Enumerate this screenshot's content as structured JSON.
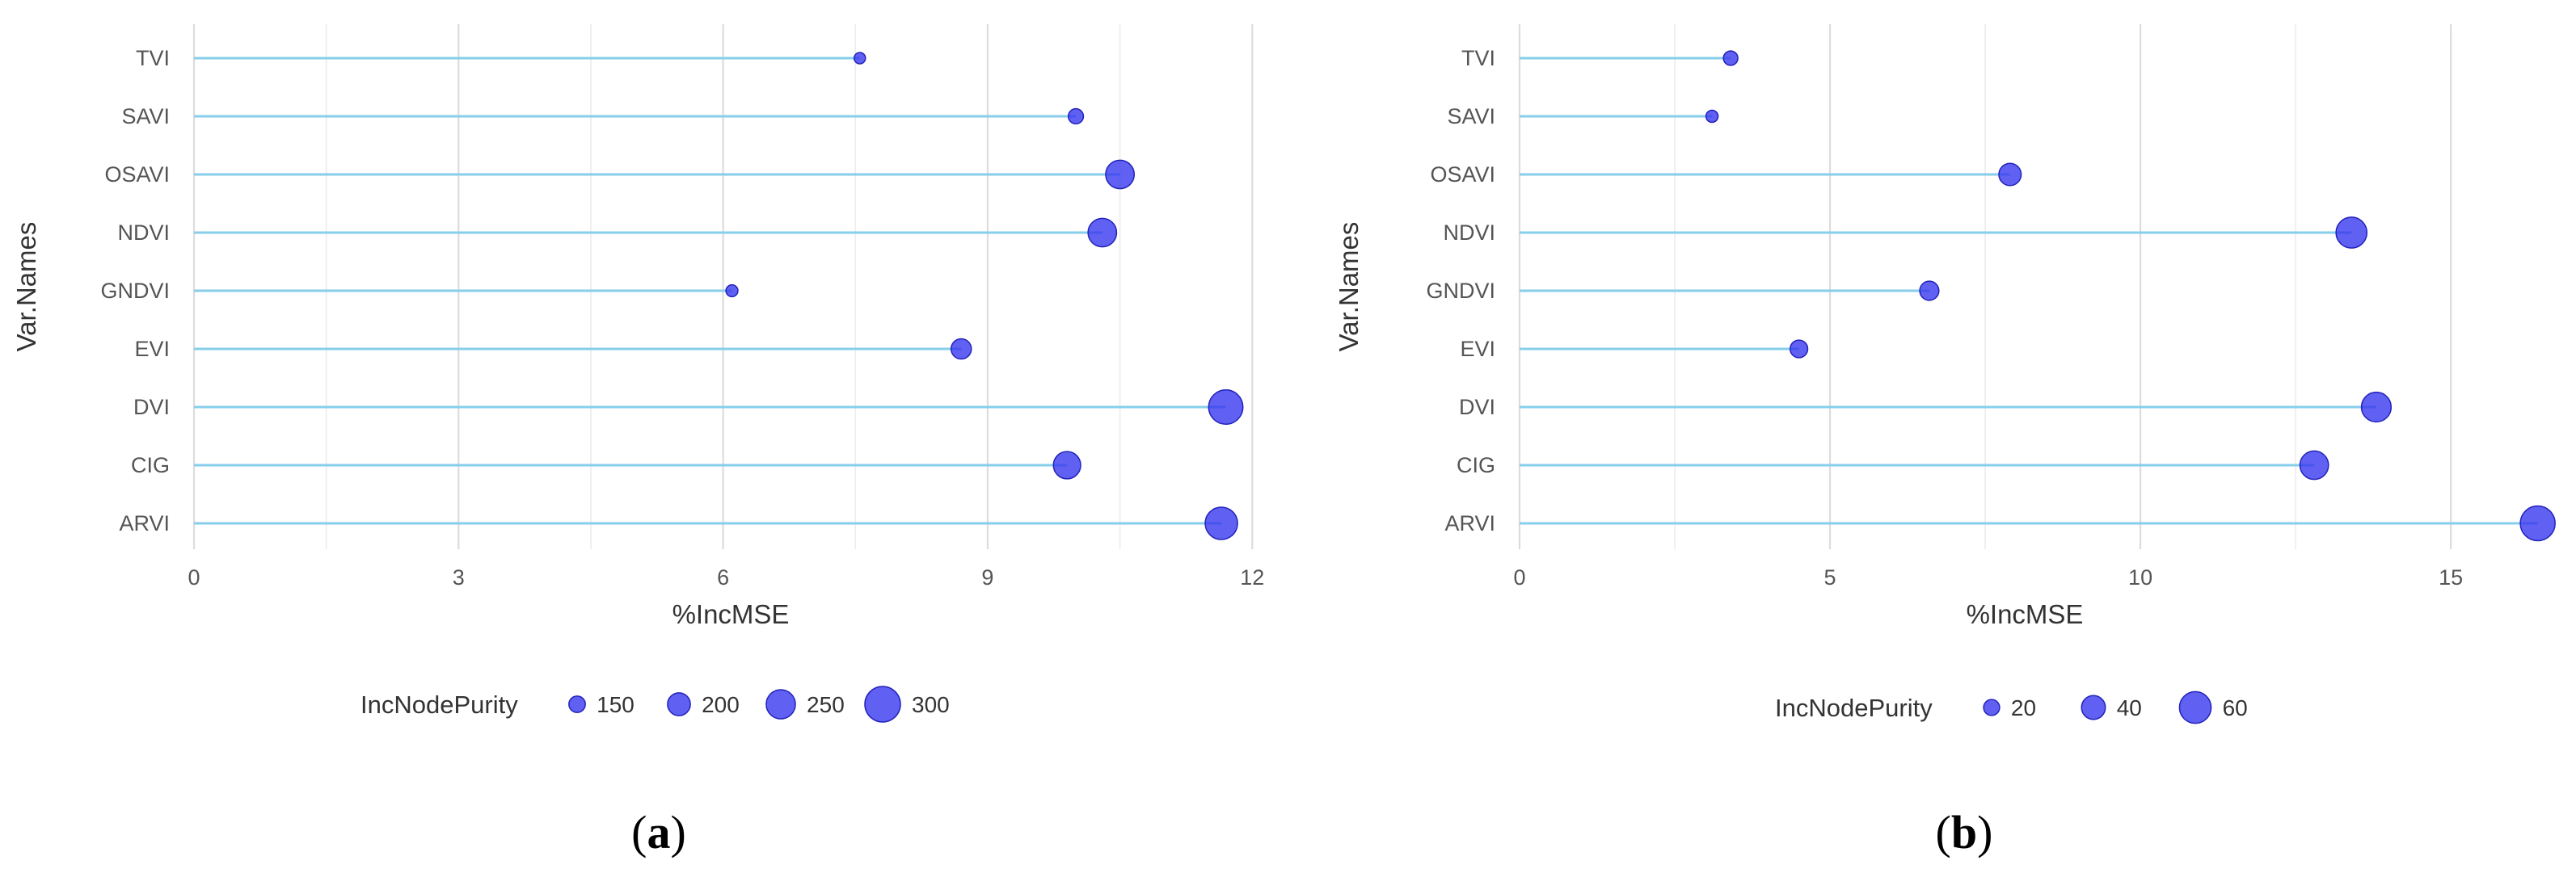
{
  "chart_data": [
    {
      "type": "scatter",
      "subtype": "lollipop",
      "panel_label": "a",
      "xlabel": "%IncMSE",
      "ylabel": "Var.Names",
      "categories": [
        "TVI",
        "SAVI",
        "OSAVI",
        "NDVI",
        "GNDVI",
        "EVI",
        "DVI",
        "CIG",
        "ARVI"
      ],
      "x": [
        7.55,
        10.0,
        10.5,
        10.3,
        6.1,
        8.7,
        11.7,
        9.9,
        11.65
      ],
      "size": [
        110,
        140,
        245,
        245,
        115,
        180,
        290,
        235,
        275
      ],
      "xlim": [
        0,
        12.3
      ],
      "xticks": [
        0,
        3,
        6,
        9,
        12
      ],
      "grid": true,
      "legend": {
        "title": "IncNodePurity",
        "position": "bottom",
        "entries": [
          150,
          200,
          250,
          300
        ]
      },
      "size_range": [
        110,
        300
      ],
      "point_color": "#3333ee",
      "line_color": "#87ceeb"
    },
    {
      "type": "scatter",
      "subtype": "lollipop",
      "panel_label": "b",
      "xlabel": "%IncMSE",
      "ylabel": "Var.Names",
      "categories": [
        "TVI",
        "SAVI",
        "OSAVI",
        "NDVI",
        "GNDVI",
        "EVI",
        "DVI",
        "CIG",
        "ARVI"
      ],
      "x": [
        3.4,
        3.1,
        7.9,
        13.4,
        6.6,
        4.5,
        13.8,
        12.8,
        16.4
      ],
      "size": [
        16,
        10,
        36,
        58,
        28,
        24,
        55,
        52,
        68
      ],
      "xlim": [
        0,
        16.6
      ],
      "xticks": [
        0,
        5,
        10,
        15
      ],
      "grid": true,
      "legend": {
        "title": "IncNodePurity",
        "position": "bottom",
        "entries": [
          20,
          40,
          60
        ]
      },
      "size_range": [
        8,
        70
      ],
      "point_color": "#3333ee",
      "line_color": "#87ceeb"
    }
  ]
}
